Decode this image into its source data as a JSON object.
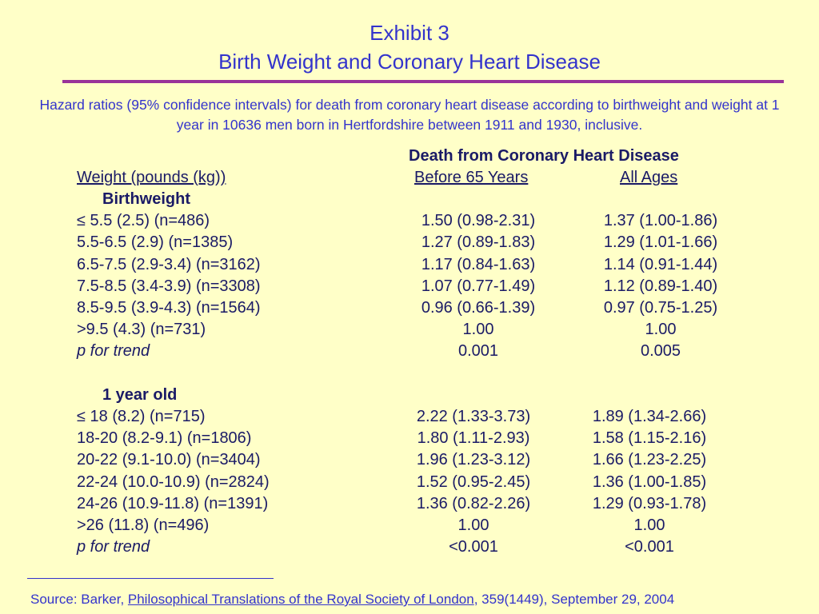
{
  "title": {
    "line1": "Exhibit 3",
    "line2": "Birth Weight and Coronary Heart Disease"
  },
  "subtitle": "Hazard ratios (95% confidence intervals) for death from coronary heart disease according to birthweight and weight at 1 year in 10636 men born in Hertfordshire between 1911 and 1930, inclusive.",
  "table": {
    "group_header": "Death from Coronary Heart Disease",
    "col_weight": "Weight (pounds (kg))",
    "col_before65": "Before 65 Years",
    "col_allages": "All Ages",
    "sections": [
      {
        "heading": "Birthweight",
        "rows": [
          {
            "label": "≤ 5.5 (2.5) (n=486)",
            "before65": "1.50 (0.98-2.31)",
            "allages": "1.37 (1.00-1.86)"
          },
          {
            "label": "5.5-6.5 (2.9) (n=1385)",
            "before65": "1.27 (0.89-1.83)",
            "allages": "1.29 (1.01-1.66)"
          },
          {
            "label": "6.5-7.5 (2.9-3.4) (n=3162)",
            "before65": "1.17 (0.84-1.63)",
            "allages": "1.14 (0.91-1.44)"
          },
          {
            "label": "7.5-8.5 (3.4-3.9) (n=3308)",
            "before65": "1.07 (0.77-1.49)",
            "allages": "1.12 (0.89-1.40)"
          },
          {
            "label": "8.5-9.5 (3.9-4.3) (n=1564)",
            "before65": "0.96 (0.66-1.39)",
            "allages": "0.97 (0.75-1.25)"
          },
          {
            "label": ">9.5 (4.3) (n=731)",
            "before65": "1.00",
            "allages": "1.00"
          }
        ],
        "trend": {
          "label": "p for trend",
          "before65": "0.001",
          "allages": "0.005"
        }
      },
      {
        "heading": "1 year old",
        "rows": [
          {
            "label": "≤ 18 (8.2) (n=715)",
            "before65": "2.22 (1.33-3.73)",
            "allages": "1.89 (1.34-2.66)"
          },
          {
            "label": "18-20 (8.2-9.1) (n=1806)",
            "before65": "1.80 (1.11-2.93)",
            "allages": "1.58 (1.15-2.16)"
          },
          {
            "label": "20-22 (9.1-10.0) (n=3404)",
            "before65": "1.96 (1.23-3.12)",
            "allages": "1.66 (1.23-2.25)"
          },
          {
            "label": "22-24 (10.0-10.9) (n=2824)",
            "before65": "1.52 (0.95-2.45)",
            "allages": "1.36 (1.00-1.85)"
          },
          {
            "label": "24-26 (10.9-11.8) (n=1391)",
            "before65": "1.36 (0.82-2.26)",
            "allages": "1.29 (0.93-1.78)"
          },
          {
            "label": ">26 (11.8) (n=496)",
            "before65": "1.00",
            "allages": "1.00"
          }
        ],
        "trend": {
          "label": "p for trend",
          "before65": "<0.001",
          "allages": "<0.001"
        }
      }
    ]
  },
  "source": {
    "prefix": "Source:  Barker, ",
    "journal": "Philosophical Translations of the Royal Society of London",
    "suffix": ", 359(1449), September 29, 2004"
  }
}
